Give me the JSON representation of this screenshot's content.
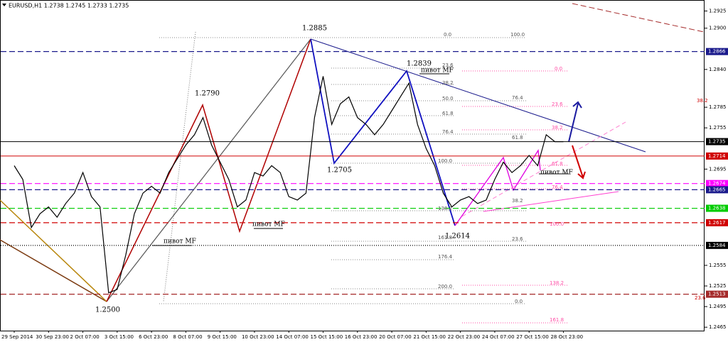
{
  "chart_data": {
    "type": "line",
    "title": "EURUSD,H1 1.2738 1.2745 1.2733 1.2735",
    "categories": [
      "29 Sep 2014",
      null,
      null,
      null,
      "30 Sep 23:00",
      null,
      null,
      null,
      "2 Oct 07:00",
      null,
      null,
      null,
      "3 Oct 15:00",
      null,
      null,
      null,
      "6 Oct 23:00",
      null,
      null,
      null,
      "8 Oct 07:00",
      null,
      null,
      null,
      "9 Oct 15:00",
      null,
      null,
      null,
      "10 Oct 23:00",
      null,
      null,
      null,
      "14 Oct 07:00",
      null,
      null,
      null,
      "15 Oct 15:00",
      null,
      null,
      null,
      "16 Oct 23:00",
      null,
      null,
      null,
      "20 Oct 07:00",
      null,
      null,
      null,
      "21 Oct 15:00",
      null,
      null,
      null,
      "22 Oct 23:00",
      null,
      null,
      null,
      "24 Oct 07:00",
      null,
      null,
      null,
      "27 Oct 15:00",
      null,
      null,
      null,
      "28 Oct 23:00"
    ],
    "values": [
      1.27,
      1.268,
      1.261,
      1.263,
      1.264,
      1.2625,
      1.2645,
      1.266,
      1.269,
      1.2655,
      1.264,
      1.2515,
      1.252,
      1.257,
      1.263,
      1.266,
      1.267,
      1.266,
      1.269,
      1.271,
      1.273,
      1.2745,
      1.277,
      1.273,
      1.2705,
      1.268,
      1.264,
      1.265,
      1.269,
      1.2685,
      1.27,
      1.269,
      1.2655,
      1.265,
      1.266,
      1.277,
      1.283,
      1.276,
      1.279,
      1.28,
      1.277,
      1.276,
      1.2745,
      1.276,
      1.278,
      1.28,
      1.282,
      1.276,
      1.2725,
      1.27,
      1.266,
      1.264,
      1.265,
      1.2655,
      1.2645,
      1.265,
      1.268,
      1.2705,
      1.269,
      1.27,
      1.2715,
      1.27,
      1.2745,
      1.2735,
      1.2735
    ],
    "color": "#000000",
    "ylim": [
      1.246,
      1.2941
    ],
    "yticks": [
      1.2925,
      {
        "value": 1.29,
        "label": "1.2900"
      },
      {
        "value": 1.284,
        "label": "1.2840"
      },
      1.2785,
      1.2755,
      1.2695,
      1.2555,
      1.2525,
      1.2495,
      1.2465
    ],
    "levels": [
      {
        "value": 1.2866,
        "color": "#1a1a8c",
        "style": "dashed"
      },
      {
        "value": 1.2735,
        "color": "#000000",
        "style": "solid"
      },
      {
        "value": 1.2714,
        "color": "#d00000",
        "style": "solid"
      },
      {
        "value": 1.2674,
        "color": "#ff00ff",
        "style": "dashed"
      },
      {
        "value": 1.2665,
        "color": "#1a1a8c",
        "style": "dashed"
      },
      {
        "value": 1.2638,
        "color": "#00cc00",
        "style": "dashed"
      },
      {
        "value": 1.2617,
        "color": "#d00000",
        "style": "dashed"
      },
      {
        "value": 1.2584,
        "color": "#000000",
        "style": "dotted"
      },
      {
        "value": 1.2513,
        "color": "#a52a2a",
        "style": "dashed"
      }
    ],
    "swing_labels": [
      1.2885,
      1.2839,
      {
        "value": 1.279,
        "label": "1.2790"
      },
      1.2705,
      1.2614,
      {
        "value": 1.25,
        "label": "1.2500"
      }
    ],
    "pivot_labels": [
      "пивот MF",
      "пивот MF",
      "пивот MF",
      "пивот MF"
    ],
    "fib_labels": [
      {
        "value": 0,
        "label": "0.0"
      },
      {
        "value": 100,
        "label": "100.0"
      },
      23.6,
      38.2,
      {
        "value": 50,
        "label": "50.0"
      },
      61.8,
      76.4,
      {
        "value": 100,
        "label": "100.0"
      },
      138.2,
      161.8,
      176.4,
      {
        "value": 200,
        "label": "200.0"
      },
      {
        "value": 0,
        "label": "0.0"
      },
      23.6,
      38.2,
      61.8,
      76.4,
      {
        "value": 0,
        "label": "0.0"
      },
      23.6,
      38.2,
      61.8,
      76.4,
      {
        "value": 100,
        "label": "100.0"
      },
      138.2,
      161.8,
      38.2,
      23.6
    ]
  }
}
